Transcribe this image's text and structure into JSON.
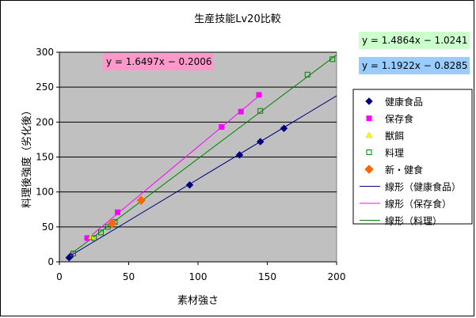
{
  "chart_data": {
    "type": "scatter",
    "title": "生産技能Lv20比較",
    "xlabel": "素材強さ",
    "ylabel": "料理後強度（劣化後）",
    "xlim": [
      0,
      200
    ],
    "ylim": [
      0,
      300
    ],
    "xticks": [
      0,
      50,
      100,
      150,
      200
    ],
    "yticks": [
      0,
      50,
      100,
      150,
      200,
      250,
      300
    ],
    "grid": true,
    "plot_background": "#c0c0c0",
    "legend_position": "right",
    "series": [
      {
        "name": "健康食品",
        "marker": "diamond",
        "color": "#000080",
        "x": [
          7,
          8,
          94,
          130,
          145,
          162
        ],
        "y": [
          6,
          8,
          110,
          153,
          172,
          191
        ]
      },
      {
        "name": "保存食",
        "marker": "square",
        "color": "#ff00ff",
        "x": [
          20,
          42,
          117,
          131,
          144
        ],
        "y": [
          34,
          71,
          193,
          215,
          239
        ]
      },
      {
        "name": "獣餌",
        "marker": "triangle",
        "color": "#ffff00",
        "x": [
          23
        ],
        "y": [
          36
        ]
      },
      {
        "name": "料理",
        "marker": "open-square",
        "color": "#008000",
        "x": [
          10,
          25,
          30,
          35,
          40,
          145,
          179,
          197
        ],
        "y": [
          12,
          34,
          42,
          50,
          57,
          216,
          268,
          290
        ]
      },
      {
        "name": "新・健食",
        "marker": "diamond",
        "color": "#ff6600",
        "x": [
          38,
          59
        ],
        "y": [
          55,
          88
        ]
      }
    ],
    "trendlines": [
      {
        "name": "線形（健康食品）",
        "color": "#000080",
        "slope": 1.1922,
        "intercept": -0.8285,
        "x_range": [
          7,
          200
        ],
        "equation": "y = 1.1922x − 0.8285",
        "box_color": "#99ccff"
      },
      {
        "name": "線形（保存食）",
        "color": "#ff00ff",
        "slope": 1.6497,
        "intercept": -0.2006,
        "x_range": [
          20,
          145
        ],
        "equation": "y = 1.6497x − 0.2006",
        "box_color": "#ff99cc"
      },
      {
        "name": "線形（料理）",
        "color": "#008000",
        "slope": 1.4864,
        "intercept": -1.0241,
        "x_range": [
          7,
          200
        ],
        "equation": "y = 1.4864x − 1.0241",
        "box_color": "#ccffcc"
      }
    ]
  }
}
